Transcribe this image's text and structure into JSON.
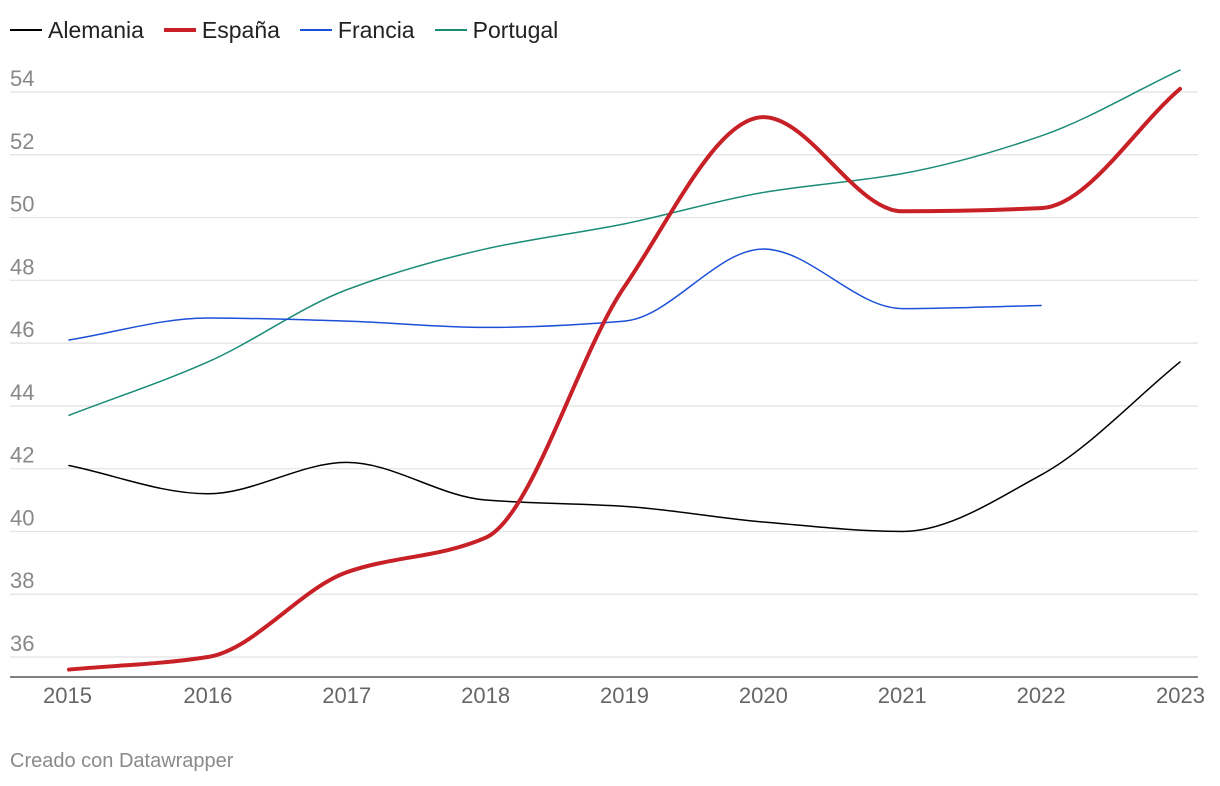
{
  "chart_data": {
    "type": "line",
    "title": "",
    "xlabel": "",
    "ylabel": "",
    "x": [
      "2015",
      "2016",
      "2017",
      "2018",
      "2019",
      "2020",
      "2021",
      "2022",
      "2023"
    ],
    "ylim": [
      35.5,
      55
    ],
    "yticks": [
      36,
      38,
      40,
      42,
      44,
      46,
      48,
      50,
      52,
      54
    ],
    "grid": true,
    "legend_position": "top-left",
    "series": [
      {
        "name": "Alemania",
        "color": "#000000",
        "width": 1.5,
        "values": [
          42.1,
          41.2,
          42.2,
          41.0,
          40.8,
          40.3,
          40.0,
          41.8,
          45.4
        ]
      },
      {
        "name": "España",
        "color": "#c72026",
        "width": 4,
        "values": [
          35.6,
          36.0,
          38.7,
          39.8,
          47.8,
          53.2,
          50.2,
          50.3,
          54.1
        ]
      },
      {
        "name": "Francia",
        "color": "#1b4fd8",
        "width": 1.5,
        "values": [
          46.1,
          46.8,
          46.7,
          46.5,
          46.7,
          49.0,
          47.1,
          47.2,
          null
        ]
      },
      {
        "name": "Portugal",
        "color": "#1a8c77",
        "width": 1.5,
        "values": [
          43.7,
          45.4,
          47.7,
          49.0,
          49.8,
          50.8,
          51.4,
          52.6,
          54.7
        ]
      }
    ],
    "credit": "Creado con Datawrapper"
  }
}
